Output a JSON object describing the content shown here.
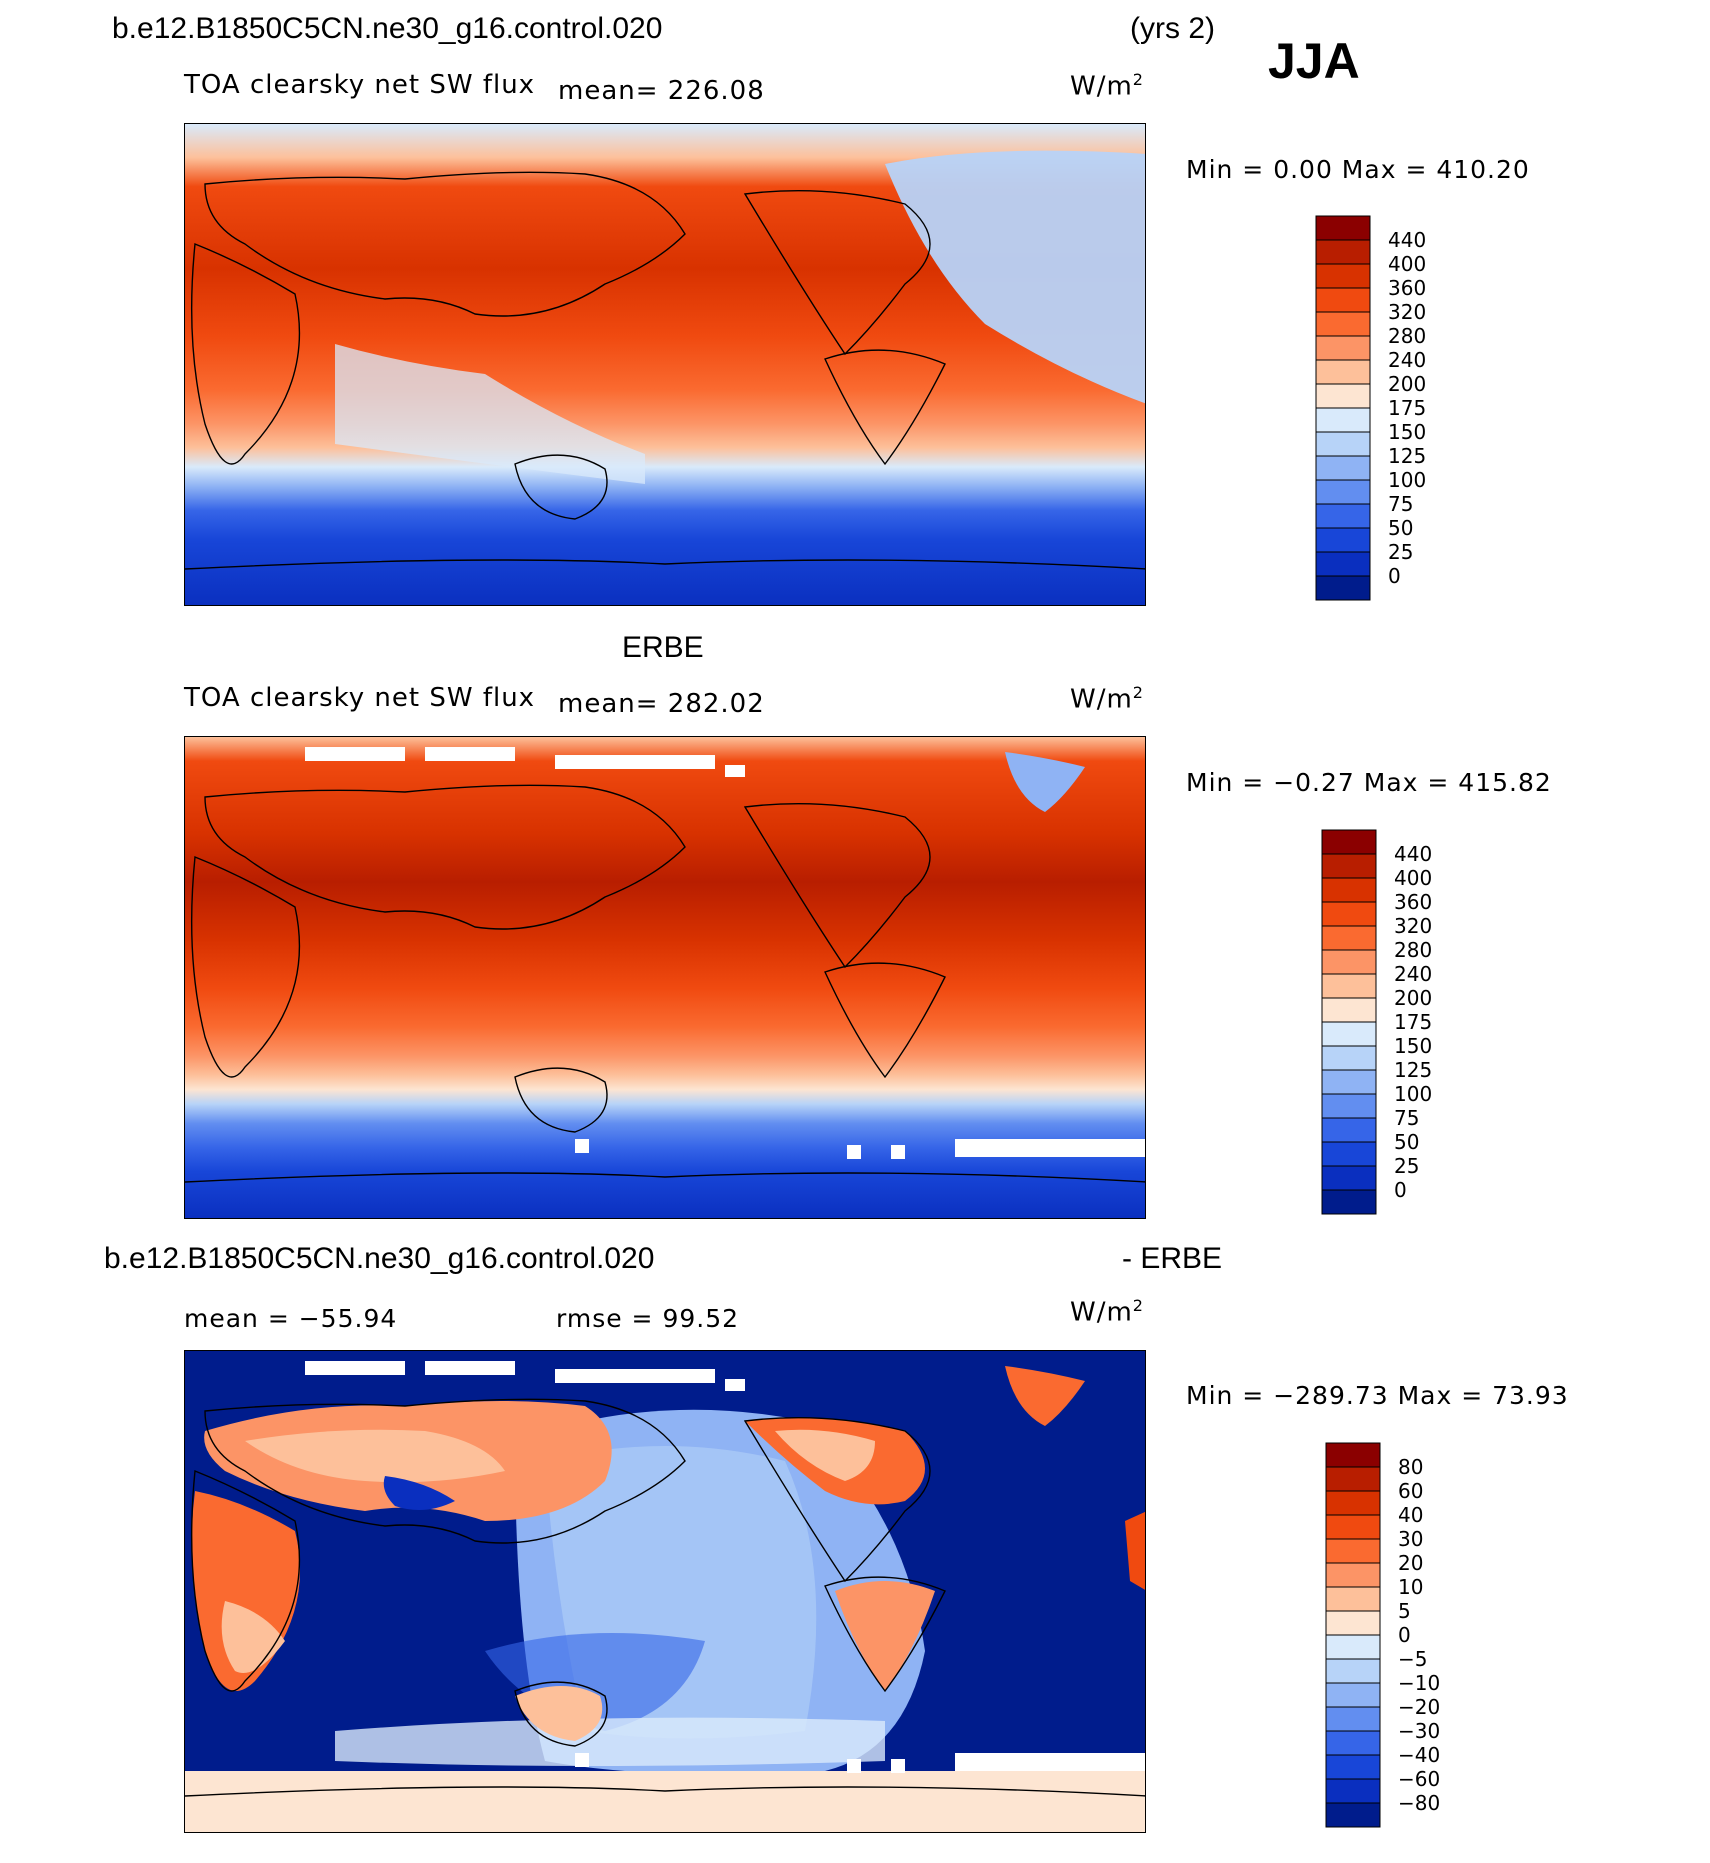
{
  "header": {
    "case": "b.e12.B1850C5CN.ne30_g16.control.020",
    "years": "(yrs 2)",
    "season": "JJA"
  },
  "panels": [
    {
      "id": "model",
      "title": "",
      "variable": "TOA clearsky net SW flux",
      "stat": "mean= 226.08",
      "units_base": "W/m",
      "units_exp": "2",
      "minmax": "Min =    0.00 Max = 410.20",
      "colorbar": {
        "labels": [
          "440",
          "400",
          "360",
          "320",
          "280",
          "240",
          "200",
          "175",
          "150",
          "125",
          "100",
          "75",
          "50",
          "25",
          "0"
        ],
        "colors": [
          "#8b0000",
          "#b81e00",
          "#d83200",
          "#f04a10",
          "#fa6a30",
          "#fc9466",
          "#fdc09a",
          "#fde5d2",
          "#d9eafb",
          "#b7d3f8",
          "#8fb3f4",
          "#628ef0",
          "#3665e8",
          "#1846d8",
          "#0a2fbf",
          "#001c8c"
        ]
      }
    },
    {
      "id": "obs",
      "title": "ERBE",
      "variable": "TOA clearsky net SW flux",
      "stat": "mean= 282.02",
      "units_base": "W/m",
      "units_exp": "2",
      "minmax": "Min =  −0.27 Max = 415.82",
      "colorbar": {
        "labels": [
          "440",
          "400",
          "360",
          "320",
          "280",
          "240",
          "200",
          "175",
          "150",
          "125",
          "100",
          "75",
          "50",
          "25",
          "0"
        ],
        "colors": [
          "#8b0000",
          "#b81e00",
          "#d83200",
          "#f04a10",
          "#fa6a30",
          "#fc9466",
          "#fdc09a",
          "#fde5d2",
          "#d9eafb",
          "#b7d3f8",
          "#8fb3f4",
          "#628ef0",
          "#3665e8",
          "#1846d8",
          "#0a2fbf",
          "#001c8c"
        ]
      }
    },
    {
      "id": "diff",
      "title_left": "b.e12.B1850C5CN.ne30_g16.control.020",
      "title_right": "- ERBE",
      "stat_mean": "mean = −55.94",
      "stat_rmse": "rmse =  99.52",
      "units_base": "W/m",
      "units_exp": "2",
      "minmax": "Min = −289.73 Max =  73.93",
      "colorbar": {
        "labels": [
          "80",
          "60",
          "40",
          "30",
          "20",
          "10",
          "5",
          "0",
          "−5",
          "−10",
          "−20",
          "−30",
          "−40",
          "−60",
          "−80"
        ],
        "colors": [
          "#8b0000",
          "#b81e00",
          "#d83200",
          "#f04a10",
          "#fa6a30",
          "#fc9466",
          "#fdc09a",
          "#fde5d2",
          "#d9eafb",
          "#b7d3f8",
          "#8fb3f4",
          "#628ef0",
          "#3665e8",
          "#1846d8",
          "#0a2fbf",
          "#001c8c"
        ]
      }
    }
  ]
}
